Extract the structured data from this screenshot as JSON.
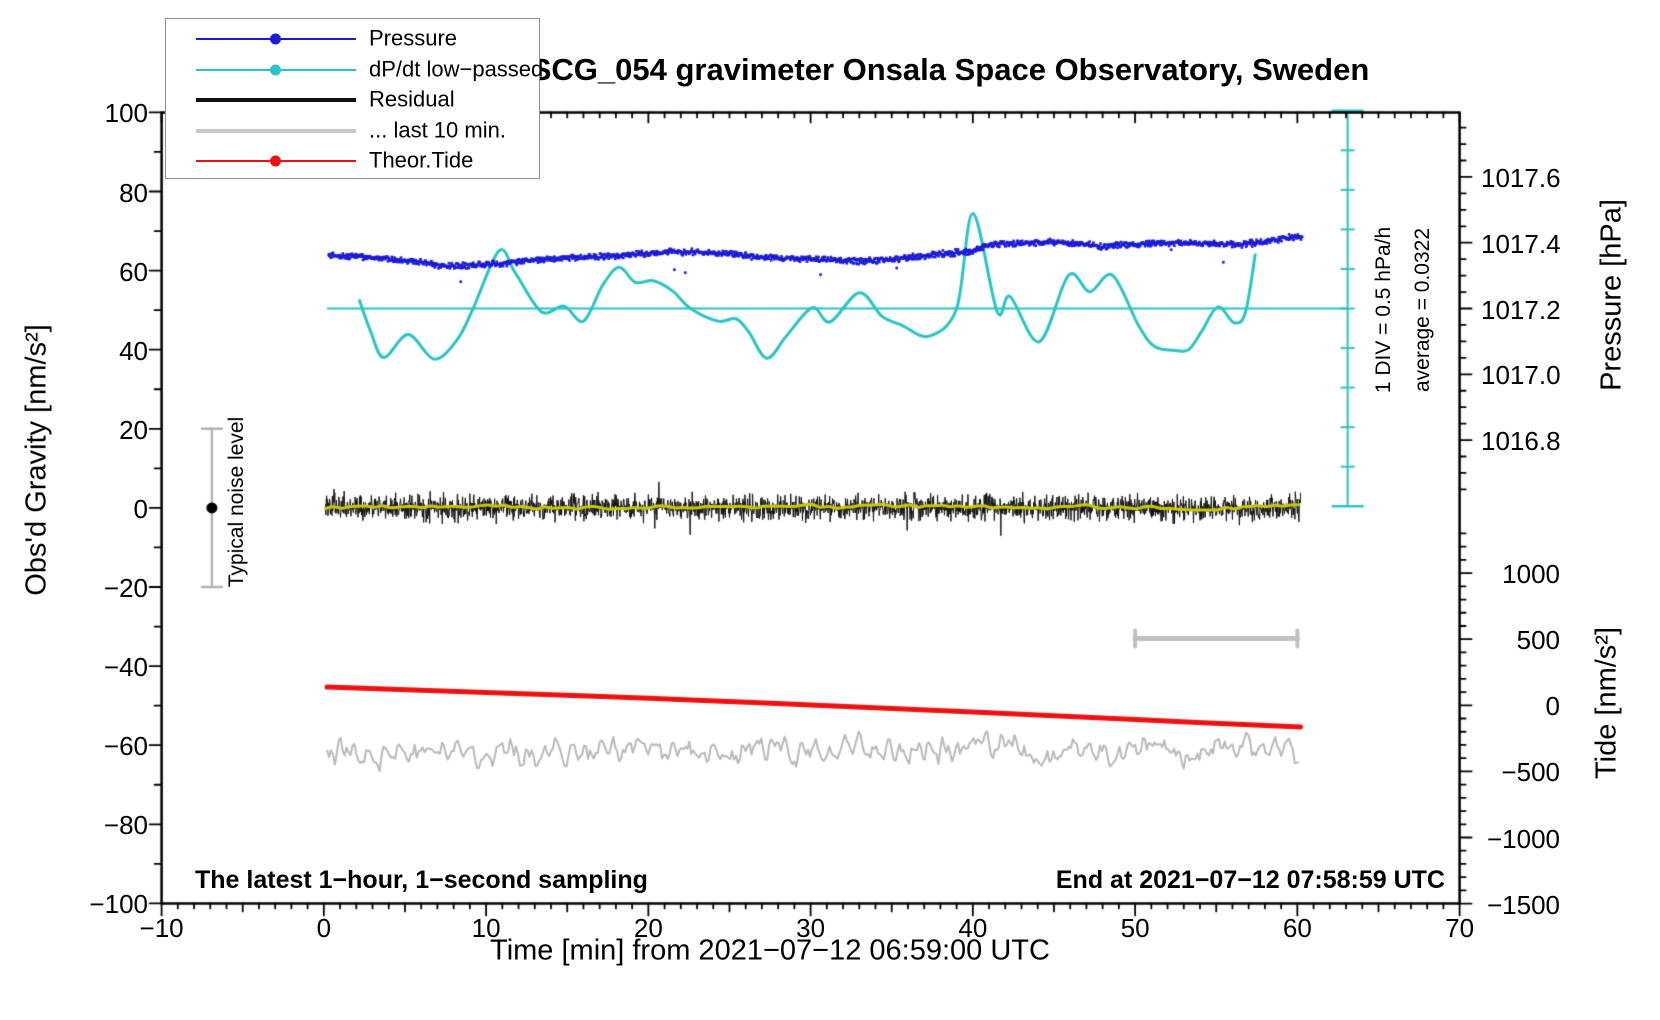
{
  "header": {
    "title": "SCG_054 gravimeter Onsala Space Observatory, Sweden"
  },
  "legend": {
    "items": [
      {
        "label": "Pressure",
        "color": "#1c1cd8",
        "style": "thin-dot"
      },
      {
        "label": "dP/dt low−passed",
        "color": "#2bc4c4",
        "style": "thin-dot"
      },
      {
        "label": "Residual",
        "color": "#111111",
        "style": "thick"
      },
      {
        "label": "... last 10 min.",
        "color": "#c8c8c8",
        "style": "thick"
      },
      {
        "label": "Theor.Tide",
        "color": "#ee1111",
        "style": "thin-dot"
      }
    ]
  },
  "annotations": {
    "div_scale": "1 DIV = 0.5 hPa/h",
    "average": "average = 0.0322",
    "typical_noise": "Typical noise level",
    "footer_left": "The latest 1−hour, 1−second sampling",
    "footer_right": "End at 2021−07−12 07:58:59 UTC"
  },
  "chart_data": {
    "type": "line",
    "title": "SCG_054 gravimeter Onsala Space Observatory, Sweden",
    "average_dpdt_hPa_per_h": 0.0322,
    "axes": {
      "x_axis": {
        "label": "Time [min] from 2021−07−12 06:59:00 UTC",
        "range": [
          -10,
          70
        ],
        "major_tick": 10,
        "minor_tick": 1,
        "tick_values": [
          -10,
          0,
          10,
          20,
          30,
          40,
          50,
          60,
          70
        ],
        "tick_labels": [
          "−10",
          "0",
          "10",
          "20",
          "30",
          "40",
          "50",
          "60",
          "70"
        ]
      },
      "y_left": {
        "label": "Obs'd Gravity [nm/s²]",
        "range": [
          -100,
          100
        ],
        "major_tick": 20,
        "minor_tick": 10,
        "tick_values": [
          100,
          80,
          60,
          40,
          20,
          0,
          -20,
          -40,
          -60,
          -80,
          -100
        ],
        "tick_labels": [
          "100",
          "80",
          "60",
          "40",
          "20",
          "0",
          "−20",
          "−40",
          "−60",
          "−80",
          "−100"
        ]
      },
      "y_right_pressure": {
        "label": "Pressure [hPa]",
        "minor_tick": 0.05,
        "tick_values": [
          1017.6,
          1017.4,
          1017.2,
          1017.0,
          1016.8
        ],
        "tick_labels": [
          "1017.6",
          "1017.4",
          "1017.2",
          "1017.0",
          "1016.8"
        ]
      },
      "y_right_tide": {
        "label": "Tide [nm/s²]",
        "minor_tick": 100,
        "tick_values": [
          1000,
          500,
          0,
          -500,
          -1000,
          -1500
        ],
        "tick_labels": [
          "1000",
          "500",
          "0",
          "−500",
          "−1000",
          "−1500"
        ]
      }
    },
    "series": [
      {
        "name": "Pressure",
        "unit": "hPa",
        "type": "scatter-dots",
        "color": "#1c1cd8",
        "jitter_hPa": 0.011,
        "points": [
          [
            0.3,
            1017.362
          ],
          [
            2,
            1017.358
          ],
          [
            4,
            1017.35
          ],
          [
            6,
            1017.342
          ],
          [
            7.5,
            1017.328
          ],
          [
            9,
            1017.331
          ],
          [
            11,
            1017.338
          ],
          [
            13,
            1017.348
          ],
          [
            15,
            1017.354
          ],
          [
            17,
            1017.357
          ],
          [
            19,
            1017.363
          ],
          [
            21,
            1017.372
          ],
          [
            23,
            1017.372
          ],
          [
            25,
            1017.366
          ],
          [
            27,
            1017.356
          ],
          [
            29,
            1017.352
          ],
          [
            31,
            1017.349
          ],
          [
            33,
            1017.343
          ],
          [
            35,
            1017.349
          ],
          [
            37,
            1017.36
          ],
          [
            38.5,
            1017.368
          ],
          [
            40,
            1017.374
          ],
          [
            41,
            1017.396
          ],
          [
            43,
            1017.398
          ],
          [
            45,
            1017.402
          ],
          [
            47,
            1017.396
          ],
          [
            48,
            1017.387
          ],
          [
            49,
            1017.394
          ],
          [
            51,
            1017.398
          ],
          [
            53,
            1017.399
          ],
          [
            55,
            1017.398
          ],
          [
            56.5,
            1017.394
          ],
          [
            58,
            1017.403
          ],
          [
            59.5,
            1017.416
          ],
          [
            60.3,
            1017.418
          ]
        ]
      },
      {
        "name": "dP/dt low−passed",
        "unit": "hPa/h",
        "type": "line",
        "color": "#2bc4c4",
        "zero_line_at_gravity": 50,
        "points": [
          [
            2.2,
            0.1
          ],
          [
            2.9,
            -0.3
          ],
          [
            3.7,
            -0.62
          ],
          [
            5.2,
            -0.33
          ],
          [
            6.8,
            -0.64
          ],
          [
            8.2,
            -0.4
          ],
          [
            9.2,
            0.0
          ],
          [
            10.8,
            0.73
          ],
          [
            11.8,
            0.45
          ],
          [
            13.4,
            -0.04
          ],
          [
            14.8,
            0.03
          ],
          [
            16.0,
            -0.16
          ],
          [
            17.2,
            0.3
          ],
          [
            18.2,
            0.52
          ],
          [
            19.2,
            0.33
          ],
          [
            20.3,
            0.35
          ],
          [
            21.5,
            0.22
          ],
          [
            22.6,
            0.0
          ],
          [
            24.3,
            -0.16
          ],
          [
            25.4,
            -0.13
          ],
          [
            26.2,
            -0.3
          ],
          [
            27.3,
            -0.63
          ],
          [
            28.5,
            -0.35
          ],
          [
            30.1,
            0.01
          ],
          [
            31.2,
            -0.17
          ],
          [
            33.0,
            0.2
          ],
          [
            34.4,
            -0.1
          ],
          [
            35.6,
            -0.21
          ],
          [
            37.3,
            -0.35
          ],
          [
            39.0,
            0.0
          ],
          [
            40.0,
            1.2
          ],
          [
            41.5,
            -0.04
          ],
          [
            42.3,
            0.15
          ],
          [
            44.1,
            -0.42
          ],
          [
            45.9,
            0.42
          ],
          [
            47.2,
            0.21
          ],
          [
            48.6,
            0.42
          ],
          [
            50.2,
            -0.21
          ],
          [
            51.2,
            -0.48
          ],
          [
            52.5,
            -0.53
          ],
          [
            53.3,
            -0.52
          ],
          [
            54.1,
            -0.29
          ],
          [
            55.1,
            0.02
          ],
          [
            56.1,
            -0.18
          ],
          [
            56.8,
            -0.05
          ],
          [
            57.4,
            0.68
          ]
        ]
      },
      {
        "name": "Residual",
        "unit": "nm/s² (gravity axis)",
        "type": "noisy-line",
        "color": "#111111",
        "mean": 0,
        "typical_amplitude": 4.5,
        "max_amplitude": 8.2,
        "span_min": [
          0.1,
          60.2
        ]
      },
      {
        "name": "Residual smoothed",
        "unit": "nm/s² (gravity axis)",
        "type": "line",
        "color": "#c9c900",
        "mean": 0.15,
        "amplitude": 0.8,
        "span_min": [
          0.1,
          60.2
        ]
      },
      {
        "name": "... last 10 min.",
        "unit": "nm/s² (gravity axis)",
        "type": "noisy-line",
        "color": "#b9b9b9",
        "mean": -61.4,
        "amplitude": 4.5,
        "span_min": [
          0.2,
          60.1
        ]
      },
      {
        "name": "Theor.Tide",
        "unit": "nm/s² (tide axis)",
        "type": "line",
        "color": "#ee1111",
        "points": [
          [
            0.2,
            138
          ],
          [
            10,
            96
          ],
          [
            20,
            54
          ],
          [
            30,
            3
          ],
          [
            40,
            -51
          ],
          [
            50,
            -108
          ],
          [
            60.2,
            -164
          ]
        ]
      }
    ],
    "markers": {
      "typical_noise_bar": {
        "t": -6.9,
        "gravity_center": 0,
        "gravity_half_range": 20,
        "color": "#b3b3b3"
      },
      "dpdt_scale_bar": {
        "t": 63.1,
        "divisions": 10,
        "div_value_hPa_per_h": 0.5,
        "color": "#2bc4c4"
      },
      "ten_min_scale_bar": {
        "t_start": 50,
        "t_end": 60,
        "gravity": -33,
        "color": "#c0c0c0"
      }
    }
  }
}
